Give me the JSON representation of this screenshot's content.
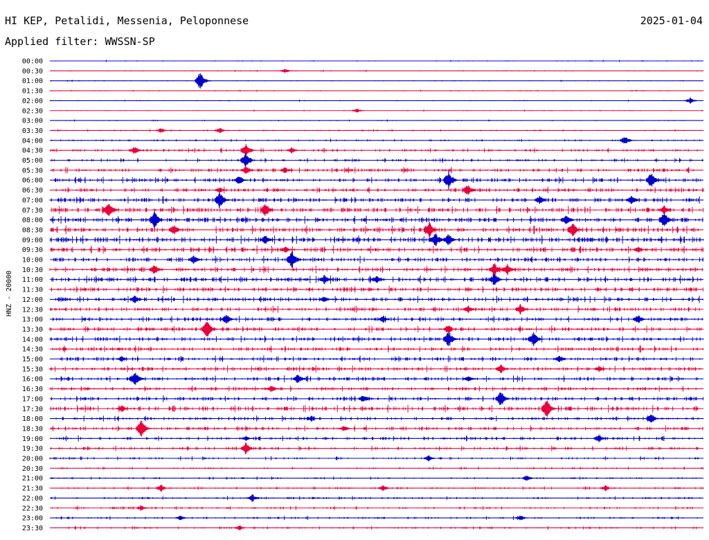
{
  "header": {
    "station": "HI KEP, Petalidi, Messenia, Peloponnese",
    "filter": "Applied filter: WWSSN-SP",
    "date": "2025-01-04"
  },
  "chart_data": {
    "type": "line",
    "title": "HI KEP, Petalidi, Messenia, Peloponnese",
    "subtitle": "Applied filter: WWSSN-SP",
    "ylabel": "HNZ - 20000",
    "xlabel": "",
    "trace_colors": [
      "#0000cc",
      "#e8003a"
    ],
    "rows": [
      {
        "label": "00:00",
        "level": 0.3,
        "events": []
      },
      {
        "label": "00:30",
        "level": 0.3,
        "events": [
          [
            0.36,
            0.5
          ]
        ]
      },
      {
        "label": "01:00",
        "level": 0.3,
        "events": [
          [
            0.23,
            1.8
          ]
        ]
      },
      {
        "label": "01:30",
        "level": 0.3,
        "events": []
      },
      {
        "label": "02:00",
        "level": 0.3,
        "events": [
          [
            0.98,
            0.6
          ]
        ]
      },
      {
        "label": "02:30",
        "level": 0.3,
        "events": [
          [
            0.47,
            0.4
          ]
        ]
      },
      {
        "label": "03:00",
        "level": 0.3,
        "events": []
      },
      {
        "label": "03:30",
        "level": 0.4,
        "events": [
          [
            0.17,
            0.5
          ],
          [
            0.26,
            0.6
          ]
        ]
      },
      {
        "label": "04:00",
        "level": 0.5,
        "events": [
          [
            0.88,
            0.9
          ]
        ]
      },
      {
        "label": "04:30",
        "level": 0.7,
        "events": [
          [
            0.13,
            0.9
          ],
          [
            0.3,
            1.5
          ],
          [
            0.37,
            0.6
          ]
        ]
      },
      {
        "label": "05:00",
        "level": 0.7,
        "events": [
          [
            0.3,
            1.6
          ]
        ]
      },
      {
        "label": "05:30",
        "level": 0.9,
        "events": [
          [
            0.3,
            0.9
          ],
          [
            0.36,
            0.6
          ]
        ]
      },
      {
        "label": "06:00",
        "level": 1.0,
        "events": [
          [
            0.29,
            1.0
          ],
          [
            0.61,
            1.8
          ],
          [
            0.92,
            1.7
          ]
        ]
      },
      {
        "label": "06:30",
        "level": 1.0,
        "events": [
          [
            0.64,
            1.2
          ],
          [
            0.26,
            0.6
          ]
        ]
      },
      {
        "label": "07:00",
        "level": 1.1,
        "events": [
          [
            0.26,
            1.8
          ],
          [
            0.75,
            0.9
          ],
          [
            0.89,
            1.0
          ]
        ]
      },
      {
        "label": "07:30",
        "level": 1.2,
        "events": [
          [
            0.09,
            1.8
          ],
          [
            0.33,
            1.5
          ],
          [
            0.94,
            0.9
          ]
        ]
      },
      {
        "label": "08:00",
        "level": 1.2,
        "events": [
          [
            0.16,
            1.8
          ],
          [
            0.79,
            1.2
          ],
          [
            0.94,
            1.6
          ]
        ]
      },
      {
        "label": "08:30",
        "level": 1.2,
        "events": [
          [
            0.19,
            1.0
          ],
          [
            0.58,
            1.8
          ],
          [
            0.8,
            1.6
          ]
        ]
      },
      {
        "label": "09:00",
        "level": 1.3,
        "events": [
          [
            0.33,
            1.0
          ],
          [
            0.59,
            1.6
          ],
          [
            0.61,
            1.2
          ]
        ]
      },
      {
        "label": "09:30",
        "level": 1.2,
        "events": [
          [
            0.36,
            0.7
          ],
          [
            0.9,
            0.6
          ]
        ]
      },
      {
        "label": "10:00",
        "level": 1.1,
        "events": [
          [
            0.22,
            0.8
          ],
          [
            0.37,
            1.9
          ]
        ]
      },
      {
        "label": "10:30",
        "level": 1.1,
        "events": [
          [
            0.16,
            1.0
          ],
          [
            0.68,
            1.4
          ],
          [
            0.7,
            1.1
          ]
        ]
      },
      {
        "label": "11:00",
        "level": 1.2,
        "events": [
          [
            0.42,
            0.9
          ],
          [
            0.5,
            0.8
          ],
          [
            0.68,
            1.3
          ]
        ]
      },
      {
        "label": "11:30",
        "level": 1.1,
        "events": []
      },
      {
        "label": "12:00",
        "level": 1.1,
        "events": [
          [
            0.13,
            0.8
          ],
          [
            0.42,
            0.7
          ]
        ]
      },
      {
        "label": "12:30",
        "level": 1.0,
        "events": [
          [
            0.64,
            0.7
          ],
          [
            0.72,
            1.0
          ]
        ]
      },
      {
        "label": "13:00",
        "level": 1.0,
        "events": [
          [
            0.27,
            1.0
          ],
          [
            0.51,
            0.7
          ],
          [
            0.9,
            0.9
          ]
        ]
      },
      {
        "label": "13:30",
        "level": 1.0,
        "events": [
          [
            0.24,
            1.9
          ],
          [
            0.61,
            0.9
          ]
        ]
      },
      {
        "label": "14:00",
        "level": 1.0,
        "events": [
          [
            0.61,
            1.7
          ],
          [
            0.74,
            1.5
          ]
        ]
      },
      {
        "label": "14:30",
        "level": 1.0,
        "events": []
      },
      {
        "label": "15:00",
        "level": 1.0,
        "events": [
          [
            0.11,
            0.6
          ],
          [
            0.78,
            0.7
          ]
        ]
      },
      {
        "label": "15:30",
        "level": 1.0,
        "events": [
          [
            0.69,
            0.9
          ],
          [
            0.84,
            0.6
          ]
        ]
      },
      {
        "label": "16:00",
        "level": 1.0,
        "events": [
          [
            0.13,
            1.7
          ],
          [
            0.38,
            1.0
          ],
          [
            0.64,
            0.7
          ]
        ]
      },
      {
        "label": "16:30",
        "level": 0.9,
        "events": [
          [
            0.34,
            0.7
          ]
        ]
      },
      {
        "label": "17:00",
        "level": 1.0,
        "events": [
          [
            0.48,
            0.9
          ],
          [
            0.69,
            1.7
          ]
        ]
      },
      {
        "label": "17:30",
        "level": 1.1,
        "events": [
          [
            0.11,
            0.7
          ],
          [
            0.76,
            1.9
          ]
        ]
      },
      {
        "label": "18:00",
        "level": 0.9,
        "events": [
          [
            0.4,
            0.6
          ],
          [
            0.92,
            1.0
          ]
        ]
      },
      {
        "label": "18:30",
        "level": 0.9,
        "events": [
          [
            0.14,
            1.9
          ],
          [
            0.45,
            0.6
          ]
        ]
      },
      {
        "label": "19:00",
        "level": 0.9,
        "events": [
          [
            0.3,
            0.5
          ],
          [
            0.84,
            0.8
          ]
        ]
      },
      {
        "label": "19:30",
        "level": 0.8,
        "events": [
          [
            0.3,
            1.2
          ]
        ]
      },
      {
        "label": "20:00",
        "level": 0.6,
        "events": [
          [
            0.58,
            0.6
          ]
        ]
      },
      {
        "label": "20:30",
        "level": 0.5,
        "events": []
      },
      {
        "label": "21:00",
        "level": 0.5,
        "events": [
          [
            0.73,
            0.6
          ]
        ]
      },
      {
        "label": "21:30",
        "level": 0.6,
        "events": [
          [
            0.17,
            0.7
          ],
          [
            0.51,
            0.6
          ],
          [
            0.85,
            0.6
          ]
        ]
      },
      {
        "label": "22:00",
        "level": 0.6,
        "events": [
          [
            0.31,
            0.8
          ]
        ]
      },
      {
        "label": "22:30",
        "level": 0.6,
        "events": [
          [
            0.14,
            0.6
          ]
        ]
      },
      {
        "label": "23:00",
        "level": 0.6,
        "events": [
          [
            0.2,
            0.5
          ],
          [
            0.72,
            0.6
          ]
        ]
      },
      {
        "label": "23:30",
        "level": 0.6,
        "events": [
          [
            0.29,
            0.5
          ]
        ]
      }
    ]
  }
}
